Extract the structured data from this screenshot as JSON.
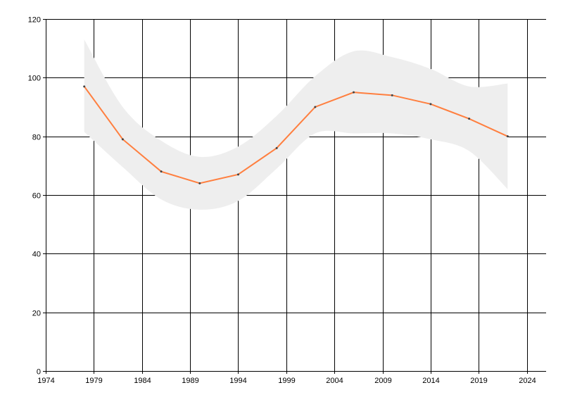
{
  "chart_data": {
    "type": "line",
    "title": "",
    "xlabel": "",
    "ylabel": "",
    "xlim": [
      1974,
      2026
    ],
    "ylim": [
      0,
      120
    ],
    "x_ticks": [
      1974,
      1979,
      1984,
      1989,
      1994,
      1999,
      2004,
      2009,
      2014,
      2019,
      2024
    ],
    "y_ticks": [
      0,
      20,
      40,
      60,
      80,
      100,
      120
    ],
    "grid": true,
    "x": [
      1978,
      1982,
      1986,
      1990,
      1994,
      1998,
      2002,
      2006,
      2010,
      2014,
      2018,
      2022
    ],
    "series": [
      {
        "values": [
          97,
          79,
          68,
          64,
          67,
          76,
          90,
          95,
          94,
          91,
          86,
          80
        ],
        "color": "#ff7f3f"
      }
    ],
    "band": {
      "upper": [
        113,
        90,
        78.5,
        73,
        76.5,
        87,
        100.5,
        109,
        107,
        103,
        97,
        98
      ],
      "lower": [
        81.5,
        69.5,
        58.5,
        55,
        58,
        69,
        81,
        81,
        81,
        79,
        75,
        62
      ],
      "color": "#eeeeee"
    },
    "legend": "none"
  }
}
